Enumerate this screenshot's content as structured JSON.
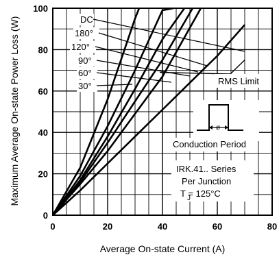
{
  "chart_data": {
    "type": "line",
    "title": "",
    "xlabel": "Average On-state Current (A)",
    "ylabel": "Maximum Average On-state Power Loss (W)",
    "xlim": [
      0,
      80
    ],
    "ylim": [
      0,
      100
    ],
    "xticks": [
      "0",
      "20",
      "40",
      "60",
      "80"
    ],
    "yticks": [
      "0",
      "20",
      "40",
      "60",
      "80",
      "100"
    ],
    "grid": true,
    "series": [
      {
        "name": "30°",
        "x": [
          0,
          10,
          20,
          30,
          31.5
        ],
        "y": [
          0,
          23,
          56,
          95,
          100
        ]
      },
      {
        "name": "60°",
        "x": [
          0,
          10,
          20,
          30,
          40,
          44
        ],
        "y": [
          0,
          19,
          43,
          70,
          99,
          100
        ]
      },
      {
        "name": "90°",
        "x": [
          0,
          10,
          20,
          30,
          40,
          48
        ],
        "y": [
          0,
          17,
          38,
          61,
          85,
          100
        ]
      },
      {
        "name": "120°",
        "x": [
          0,
          10,
          20,
          30,
          40,
          51
        ],
        "y": [
          0,
          16,
          35,
          55,
          75,
          100
        ]
      },
      {
        "name": "180°",
        "x": [
          0,
          10,
          20,
          30,
          40,
          54
        ],
        "y": [
          0,
          15,
          31,
          49,
          67,
          100
        ]
      },
      {
        "name": "DC",
        "x": [
          0,
          10,
          20,
          30,
          40,
          50,
          60,
          70
        ],
        "y": [
          0,
          12,
          25,
          38,
          51,
          64,
          77,
          92
        ]
      }
    ],
    "rms_limit": {
      "label": "RMS Limit",
      "x": [
        70,
        39
      ],
      "y": [
        75,
        69
      ]
    },
    "annotations": {
      "conduction": "Conduction Period",
      "series_line1": "IRK.41.. Series",
      "series_line2": "Per Junction",
      "tj": "T  = 125°C",
      "tj_sub": "J"
    }
  }
}
